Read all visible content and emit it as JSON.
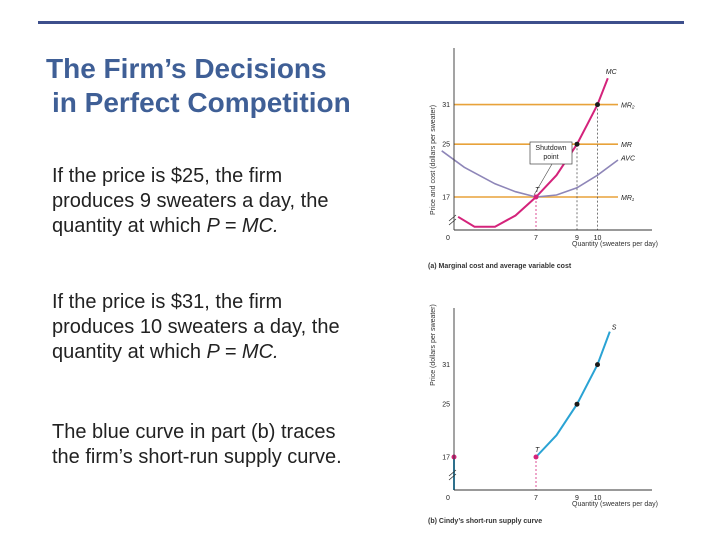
{
  "slide": {
    "title_line1": "The Firm’s Decisions",
    "title_line2": "in Perfect Competition",
    "paragraphs": [
      {
        "text": "If the price is $25, the firm produces 9 sweaters a day, the quantity at which ",
        "eq": "P = MC."
      },
      {
        "text": "If the price is $31, the firm produces 10 sweaters a day, the quantity at which ",
        "eq": "P = MC."
      },
      {
        "text": "The blue curve in part (b) traces the firm’s short-run supply curve.",
        "eq": ""
      }
    ]
  },
  "chart_data": [
    {
      "type": "line",
      "title": "(a) Marginal cost and average variable cost",
      "xlabel": "Quantity (sweaters per day)",
      "ylabel": "Price and cost (dollars per sweater)",
      "origin_label": "0",
      "x_ticks": [
        7,
        9,
        10
      ],
      "y_ticks": [
        17,
        25,
        31
      ],
      "curve_labels": {
        "mc": "MC",
        "avc": "AVC"
      },
      "price_lines": [
        {
          "price": 31,
          "label": "MR₂"
        },
        {
          "price": 25,
          "label": "MR"
        },
        {
          "price": 17,
          "label": "MR₁"
        }
      ],
      "mc_curve": [
        [
          3.2,
          14
        ],
        [
          4,
          12.5
        ],
        [
          5,
          12.5
        ],
        [
          6,
          14.2
        ],
        [
          7,
          17
        ],
        [
          8,
          20.3
        ],
        [
          9,
          25
        ],
        [
          9.5,
          28
        ],
        [
          10,
          31
        ],
        [
          10.5,
          35
        ]
      ],
      "avc_curve": [
        [
          2.4,
          24
        ],
        [
          3.5,
          21.5
        ],
        [
          5,
          19
        ],
        [
          6,
          17.8
        ],
        [
          7,
          17
        ],
        [
          8,
          17.3
        ],
        [
          9,
          18.4
        ],
        [
          10,
          20.3
        ],
        [
          11,
          22.6
        ]
      ],
      "points": [
        {
          "x": 7,
          "y": 17,
          "label": "T"
        },
        {
          "x": 9,
          "y": 25,
          "label": ""
        },
        {
          "x": 10,
          "y": 31,
          "label": ""
        }
      ],
      "annotation": "Shutdown point",
      "colors": {
        "mc": "#d4237b",
        "avc": "#8e86b8",
        "price_line": "#e8a23a",
        "point": "#1a1a1a"
      }
    },
    {
      "type": "line",
      "title": "(b) Cindy’s short-run supply curve",
      "xlabel": "Quantity (sweaters per day)",
      "ylabel": "Price (dollars per sweater)",
      "origin_label": "0",
      "x_ticks": [
        7,
        9,
        10
      ],
      "y_ticks": [
        17,
        25,
        31
      ],
      "curve_label": "S",
      "supply_curve": [
        [
          7,
          17
        ],
        [
          8,
          20.3
        ],
        [
          9,
          25
        ],
        [
          10,
          31
        ],
        [
          10.6,
          36
        ]
      ],
      "points": [
        {
          "x": 0,
          "y": 17,
          "label": ""
        },
        {
          "x": 7,
          "y": 17,
          "label": "T"
        },
        {
          "x": 9,
          "y": 25,
          "label": ""
        },
        {
          "x": 10,
          "y": 31,
          "label": ""
        }
      ],
      "colors": {
        "supply": "#2aa3d4",
        "shutdown": "#d4237b",
        "point": "#1a1a1a"
      }
    }
  ]
}
